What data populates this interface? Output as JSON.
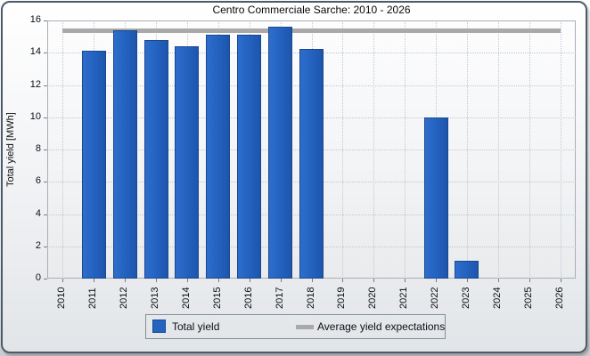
{
  "chart_data": {
    "type": "bar",
    "title": "Centro Commerciale Sarche: 2010 - 2026",
    "xlabel": "",
    "ylabel": "Total yield [MWh]",
    "ylim": [
      0,
      16
    ],
    "ytick_step": 2,
    "yticks": [
      0,
      2,
      4,
      6,
      8,
      10,
      12,
      14,
      16
    ],
    "grid": true,
    "legend_position": "bottom",
    "categories": [
      "2010",
      "2011",
      "2012",
      "2013",
      "2014",
      "2015",
      "2016",
      "2017",
      "2018",
      "2019",
      "2020",
      "2021",
      "2022",
      "2023",
      "2024",
      "2025",
      "2026"
    ],
    "series": [
      {
        "name": "Total yield",
        "type": "bar",
        "color": "#2463c0",
        "values": [
          0,
          14.1,
          15.4,
          14.8,
          14.4,
          15.1,
          15.1,
          15.6,
          14.25,
          0,
          0,
          0,
          10,
          1.1,
          0,
          0,
          0
        ]
      },
      {
        "name": "Average yield expectations",
        "type": "reference-line",
        "color": "#a9a9a9",
        "value": 15.35
      }
    ]
  },
  "colors": {
    "bar_fill": "#2463c0",
    "bar_border": "#1a4890",
    "average_line": "#a9a9a9",
    "window_border": "#4e5a67",
    "gridline": "#c3c7cc"
  }
}
